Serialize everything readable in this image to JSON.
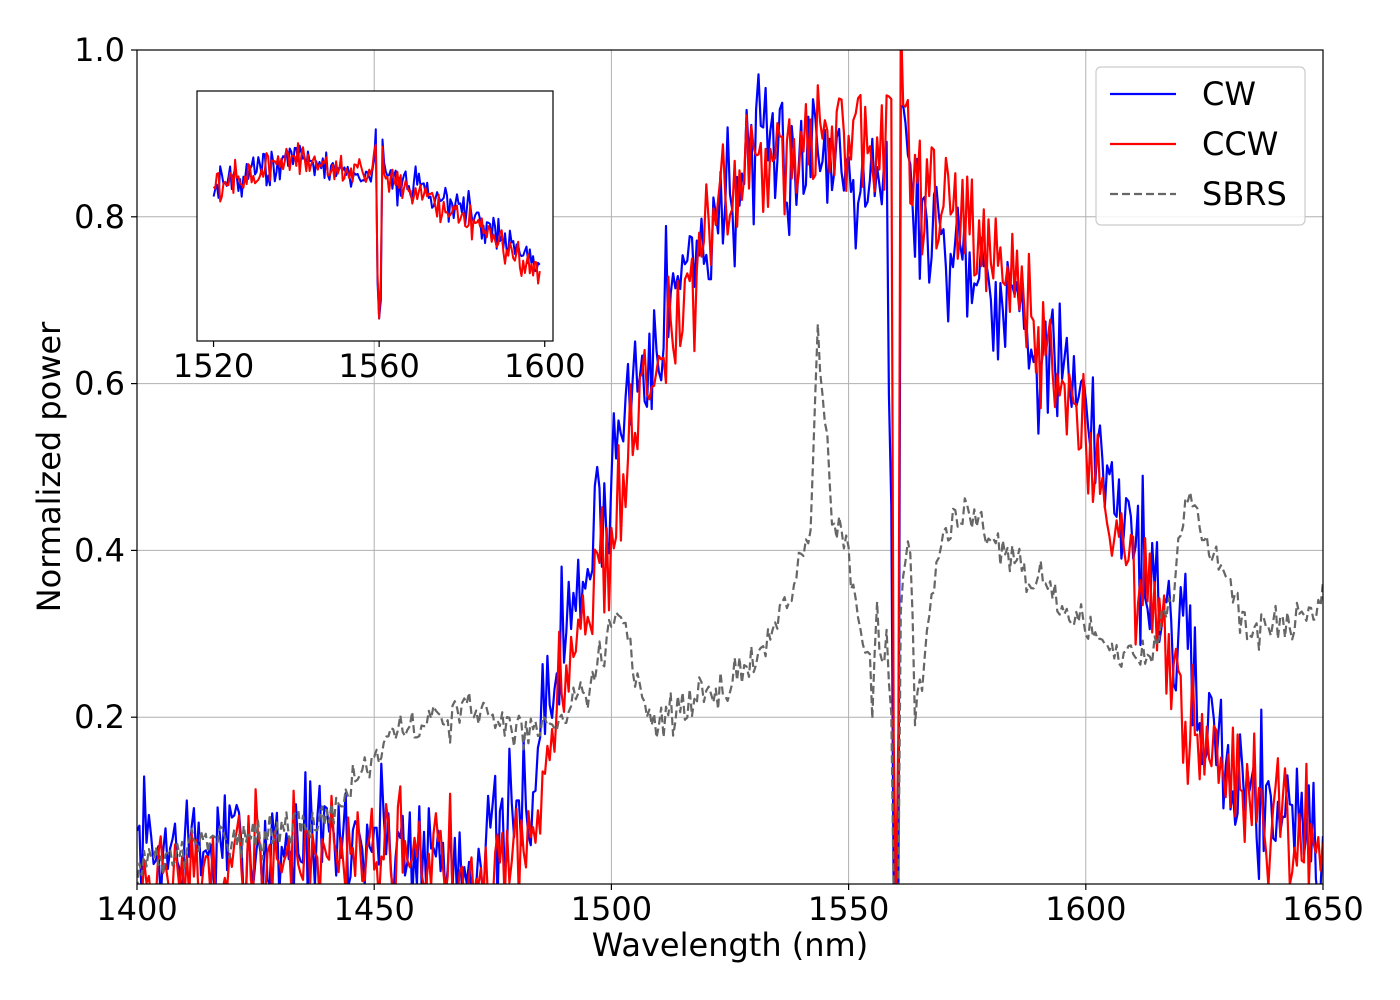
{
  "chart_data": [
    {
      "type": "line",
      "title": "",
      "xlabel": "Wavelength (nm)",
      "ylabel": "Normalized power",
      "xlim": [
        1400,
        1650
      ],
      "ylim": [
        0,
        1.0
      ],
      "xticks": [
        1400,
        1450,
        1500,
        1550,
        1600,
        1650
      ],
      "xtick_labels": [
        "1400",
        "1450",
        "1500",
        "1550",
        "1600",
        "1650"
      ],
      "yticks": [
        0.2,
        0.4,
        0.6,
        0.8,
        1.0
      ],
      "ytick_labels": [
        "0.2",
        "0.4",
        "0.6",
        "0.8",
        "1.0"
      ],
      "grid": true,
      "legend_position": "top-right",
      "series": [
        {
          "name": "CW",
          "color": "#0000ff",
          "style": "solid",
          "noise": 0.045,
          "seed": 7,
          "points": [
            [
              1400,
              0.04
            ],
            [
              1420,
              0.04
            ],
            [
              1440,
              0.05
            ],
            [
              1450,
              0.06
            ],
            [
              1460,
              0.04
            ],
            [
              1470,
              0.03
            ],
            [
              1478,
              0.05
            ],
            [
              1482,
              0.1
            ],
            [
              1486,
              0.2
            ],
            [
              1490,
              0.3
            ],
            [
              1495,
              0.38
            ],
            [
              1500,
              0.5
            ],
            [
              1505,
              0.62
            ],
            [
              1510,
              0.68
            ],
            [
              1515,
              0.73
            ],
            [
              1520,
              0.78
            ],
            [
              1525,
              0.83
            ],
            [
              1530,
              0.86
            ],
            [
              1535,
              0.87
            ],
            [
              1540,
              0.88
            ],
            [
              1545,
              0.88
            ],
            [
              1550,
              0.87
            ],
            [
              1555,
              0.86
            ],
            [
              1558,
              0.85
            ],
            [
              1559,
              0.4
            ],
            [
              1559.5,
              0.0
            ],
            [
              1560.5,
              0.0
            ],
            [
              1561,
              0.9
            ],
            [
              1565,
              0.8
            ],
            [
              1570,
              0.77
            ],
            [
              1575,
              0.76
            ],
            [
              1580,
              0.73
            ],
            [
              1585,
              0.7
            ],
            [
              1590,
              0.65
            ],
            [
              1595,
              0.61
            ],
            [
              1600,
              0.55
            ],
            [
              1605,
              0.5
            ],
            [
              1610,
              0.42
            ],
            [
              1615,
              0.35
            ],
            [
              1620,
              0.28
            ],
            [
              1625,
              0.2
            ],
            [
              1630,
              0.14
            ],
            [
              1635,
              0.11
            ],
            [
              1640,
              0.1
            ],
            [
              1645,
              0.09
            ],
            [
              1650,
              0.03
            ]
          ]
        },
        {
          "name": "CCW",
          "color": "#ff0000",
          "style": "solid",
          "noise": 0.04,
          "seed": 19,
          "points": [
            [
              1400,
              0.0
            ],
            [
              1420,
              0.02
            ],
            [
              1430,
              0.03
            ],
            [
              1440,
              0.04
            ],
            [
              1450,
              0.05
            ],
            [
              1460,
              0.03
            ],
            [
              1470,
              0.02
            ],
            [
              1478,
              0.02
            ],
            [
              1482,
              0.05
            ],
            [
              1486,
              0.12
            ],
            [
              1490,
              0.25
            ],
            [
              1495,
              0.33
            ],
            [
              1500,
              0.42
            ],
            [
              1505,
              0.55
            ],
            [
              1510,
              0.64
            ],
            [
              1515,
              0.7
            ],
            [
              1520,
              0.76
            ],
            [
              1525,
              0.82
            ],
            [
              1530,
              0.86
            ],
            [
              1535,
              0.88
            ],
            [
              1540,
              0.9
            ],
            [
              1545,
              0.9
            ],
            [
              1550,
              0.89
            ],
            [
              1555,
              0.88
            ],
            [
              1558,
              0.88
            ],
            [
              1559,
              0.99
            ],
            [
              1559.6,
              0.0
            ],
            [
              1560.4,
              0.0
            ],
            [
              1561,
              0.99
            ],
            [
              1563,
              0.85
            ],
            [
              1570,
              0.8
            ],
            [
              1575,
              0.78
            ],
            [
              1580,
              0.74
            ],
            [
              1585,
              0.71
            ],
            [
              1590,
              0.66
            ],
            [
              1595,
              0.6
            ],
            [
              1600,
              0.52
            ],
            [
              1605,
              0.46
            ],
            [
              1610,
              0.38
            ],
            [
              1615,
              0.3
            ],
            [
              1620,
              0.22
            ],
            [
              1625,
              0.15
            ],
            [
              1630,
              0.11
            ],
            [
              1635,
              0.08
            ],
            [
              1640,
              0.06
            ],
            [
              1645,
              0.05
            ],
            [
              1650,
              0.04
            ]
          ]
        },
        {
          "name": "SBRS",
          "color": "#666666",
          "style": "dashed",
          "noise": 0.012,
          "seed": 31,
          "points": [
            [
              1400,
              0.02
            ],
            [
              1410,
              0.04
            ],
            [
              1420,
              0.06
            ],
            [
              1430,
              0.06
            ],
            [
              1440,
              0.08
            ],
            [
              1445,
              0.12
            ],
            [
              1450,
              0.15
            ],
            [
              1455,
              0.18
            ],
            [
              1460,
              0.19
            ],
            [
              1465,
              0.2
            ],
            [
              1470,
              0.21
            ],
            [
              1475,
              0.2
            ],
            [
              1480,
              0.19
            ],
            [
              1485,
              0.18
            ],
            [
              1490,
              0.21
            ],
            [
              1495,
              0.24
            ],
            [
              1500,
              0.3
            ],
            [
              1501,
              0.34
            ],
            [
              1503,
              0.32
            ],
            [
              1505,
              0.25
            ],
            [
              1508,
              0.2
            ],
            [
              1512,
              0.2
            ],
            [
              1518,
              0.22
            ],
            [
              1525,
              0.24
            ],
            [
              1530,
              0.27
            ],
            [
              1535,
              0.31
            ],
            [
              1540,
              0.38
            ],
            [
              1542,
              0.43
            ],
            [
              1543.5,
              0.66
            ],
            [
              1545,
              0.55
            ],
            [
              1547,
              0.43
            ],
            [
              1550,
              0.4
            ],
            [
              1552,
              0.32
            ],
            [
              1554,
              0.27
            ],
            [
              1555,
              0.22
            ],
            [
              1556,
              0.33
            ],
            [
              1557,
              0.25
            ],
            [
              1558,
              0.3
            ],
            [
              1559,
              0.2
            ],
            [
              1559.5,
              0.0
            ],
            [
              1560.5,
              0.0
            ],
            [
              1561,
              0.35
            ],
            [
              1562,
              0.39
            ],
            [
              1563,
              0.42
            ],
            [
              1564,
              0.2
            ],
            [
              1566,
              0.28
            ],
            [
              1568,
              0.37
            ],
            [
              1570,
              0.42
            ],
            [
              1573,
              0.44
            ],
            [
              1578,
              0.44
            ],
            [
              1582,
              0.41
            ],
            [
              1585,
              0.39
            ],
            [
              1590,
              0.36
            ],
            [
              1595,
              0.33
            ],
            [
              1600,
              0.3
            ],
            [
              1605,
              0.28
            ],
            [
              1610,
              0.27
            ],
            [
              1615,
              0.29
            ],
            [
              1618,
              0.34
            ],
            [
              1620,
              0.42
            ],
            [
              1622,
              0.48
            ],
            [
              1624,
              0.42
            ],
            [
              1626,
              0.4
            ],
            [
              1630,
              0.37
            ],
            [
              1633,
              0.32
            ],
            [
              1636,
              0.3
            ],
            [
              1640,
              0.31
            ],
            [
              1645,
              0.32
            ],
            [
              1650,
              0.34
            ]
          ]
        }
      ]
    },
    {
      "type": "line",
      "title": "",
      "inset": true,
      "xlim": [
        1516,
        1602
      ],
      "ylim": [
        0.75,
        0.97
      ],
      "xticks": [
        1520,
        1560,
        1600
      ],
      "xtick_labels": [
        "1520",
        "1560",
        "1600"
      ],
      "grid": false,
      "series": [
        {
          "name": "CW",
          "color": "#0000ff",
          "noise": 0.008,
          "seed": 43,
          "points": [
            [
              1520,
              0.89
            ],
            [
              1530,
              0.9
            ],
            [
              1540,
              0.91
            ],
            [
              1550,
              0.9
            ],
            [
              1558,
              0.895
            ],
            [
              1559.3,
              0.93
            ],
            [
              1559.7,
              0.76
            ],
            [
              1560.3,
              0.76
            ],
            [
              1560.7,
              0.93
            ],
            [
              1562,
              0.89
            ],
            [
              1570,
              0.885
            ],
            [
              1580,
              0.865
            ],
            [
              1590,
              0.84
            ],
            [
              1599,
              0.815
            ]
          ]
        },
        {
          "name": "CCW",
          "color": "#ff0000",
          "noise": 0.007,
          "seed": 57,
          "points": [
            [
              1520,
              0.885
            ],
            [
              1530,
              0.9
            ],
            [
              1540,
              0.91
            ],
            [
              1550,
              0.9
            ],
            [
              1558,
              0.895
            ],
            [
              1559.3,
              0.93
            ],
            [
              1559.7,
              0.76
            ],
            [
              1560.3,
              0.76
            ],
            [
              1560.7,
              0.92
            ],
            [
              1562,
              0.89
            ],
            [
              1570,
              0.88
            ],
            [
              1580,
              0.86
            ],
            [
              1590,
              0.835
            ],
            [
              1599,
              0.81
            ]
          ]
        }
      ]
    }
  ]
}
